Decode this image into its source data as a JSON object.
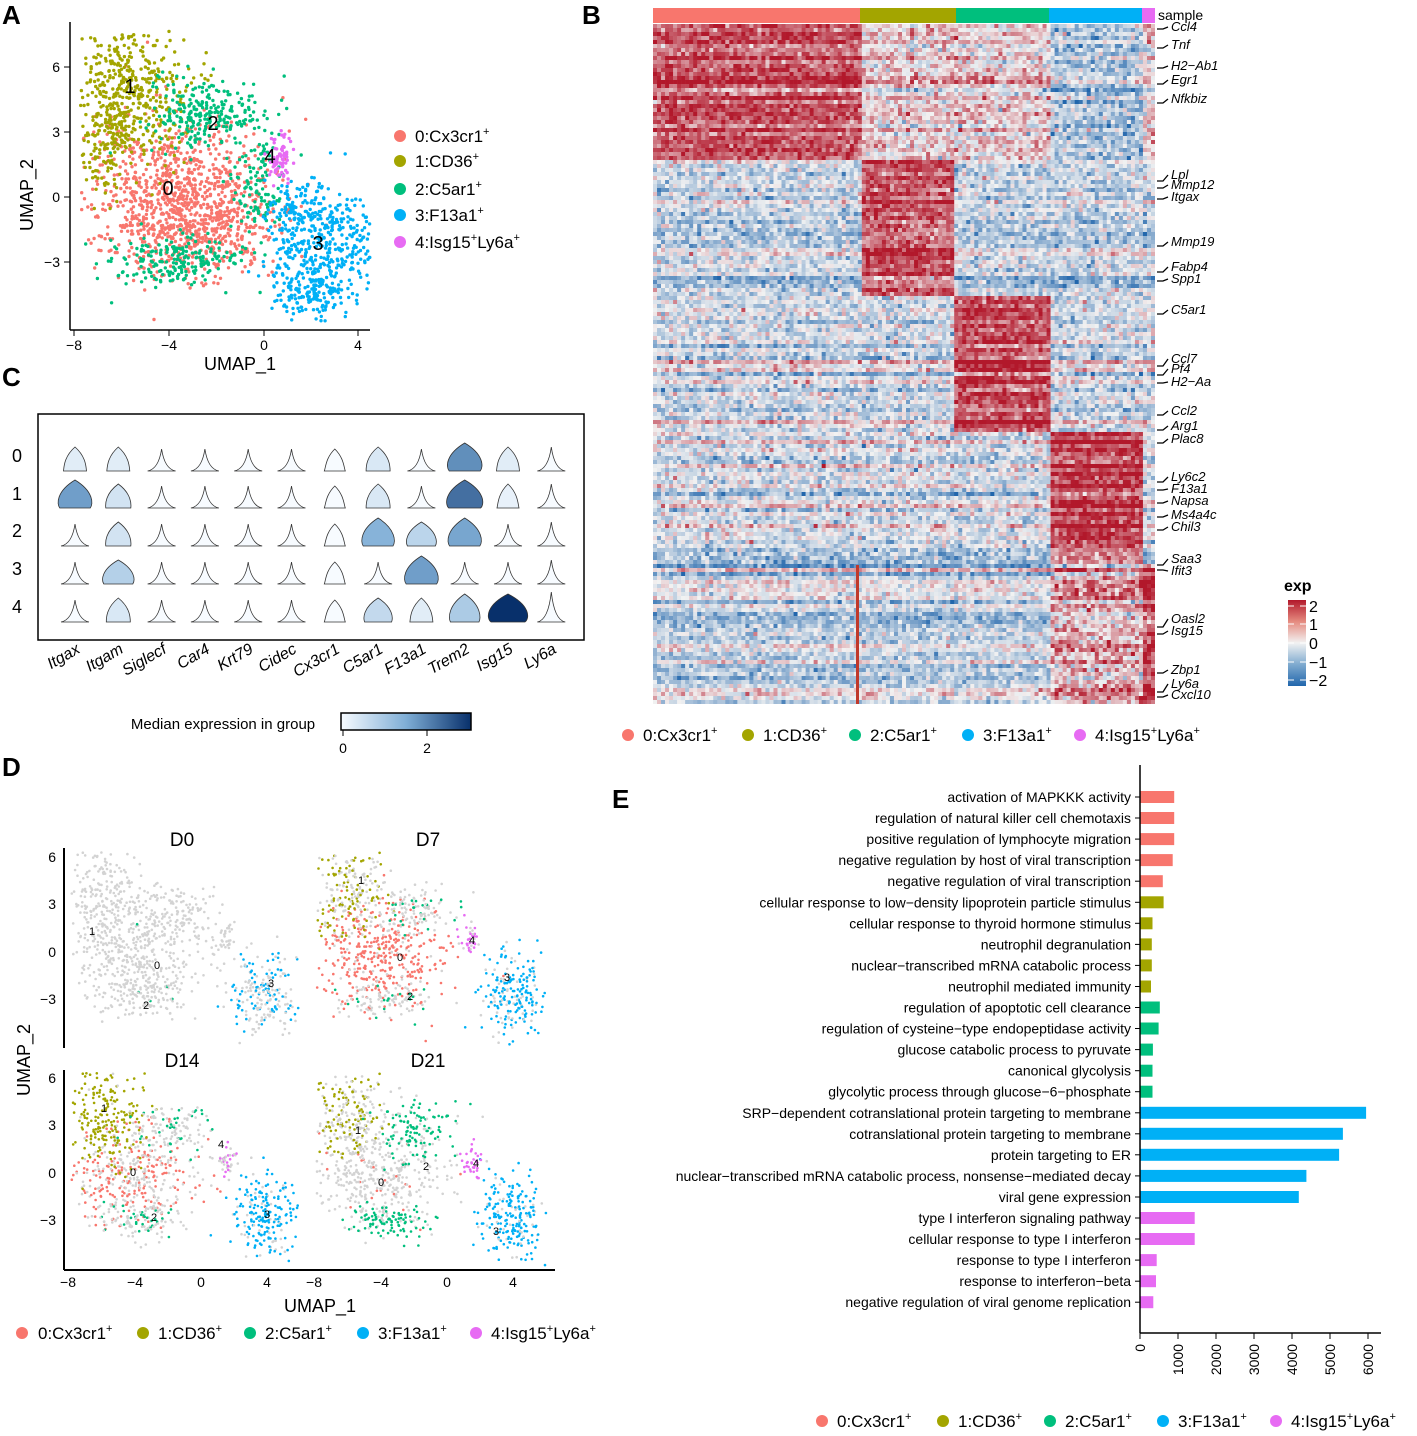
{
  "clusters": [
    {
      "id": "0",
      "name": "Cx3cr1",
      "sup": "+",
      "color": "#F8766D"
    },
    {
      "id": "1",
      "name": "CD36",
      "sup": "+",
      "color": "#A3A500"
    },
    {
      "id": "2",
      "name": "C5ar1",
      "sup": "+",
      "color": "#00BF7D"
    },
    {
      "id": "3",
      "name": "F13a1",
      "sup": "+",
      "color": "#00B0F6"
    },
    {
      "id": "4",
      "name": "Isg15",
      "sup": "+",
      "name2": "Ly6a",
      "sup2": "+",
      "color": "#E76BF3"
    }
  ],
  "panelA": {
    "label": "A",
    "xlabel": "UMAP_1",
    "ylabel": "UMAP_2",
    "xticks": [
      "−8",
      "−4",
      "0",
      "4"
    ],
    "yticks": [
      "6",
      "3",
      "0",
      "−3"
    ],
    "cluster_labels": [
      "0",
      "1",
      "2",
      "3",
      "4"
    ],
    "legend": [
      "0:Cx3cr1",
      "1:CD36",
      "2:C5ar1",
      "3:F13a1",
      "4:Isg15"
    ]
  },
  "panelB": {
    "label": "B",
    "sample_label": "sample",
    "genes": [
      "Ccl4",
      "Tnf",
      "H2−Ab1",
      "Egr1",
      "Nfkbiz",
      "Lpl",
      "Mmp12",
      "Itgax",
      "Mmp19",
      "Fabp4",
      "Spp1",
      "C5ar1",
      "Ccl7",
      "Pf4",
      "H2−Aa",
      "Ccl2",
      "Arg1",
      "Plac8",
      "Ly6c2",
      "F13a1",
      "Napsa",
      "Ms4a4c",
      "Chil3",
      "Saa3",
      "Ifit3",
      "Oasl2",
      "Isg15",
      "Zbp1",
      "Ly6a",
      "Cxcl10"
    ],
    "scale_title": "exp",
    "scale_ticks": [
      "2",
      "1",
      "0",
      "−1",
      "−2"
    ]
  },
  "panelC": {
    "label": "C",
    "rows": [
      "0",
      "1",
      "2",
      "3",
      "4"
    ],
    "genes": [
      "Itgax",
      "Itgam",
      "Siglecf",
      "Car4",
      "Krt79",
      "Cidec",
      "Cx3cr1",
      "C5ar1",
      "F13a1",
      "Trem2",
      "Isg15",
      "Ly6a"
    ],
    "median": [
      [
        0.3,
        0.3,
        0,
        0,
        0,
        0,
        0,
        0.4,
        0,
        2.0,
        0.3,
        0
      ],
      [
        1.8,
        0.5,
        0,
        0,
        0,
        0,
        0,
        0.4,
        0,
        2.4,
        0.2,
        0
      ],
      [
        0,
        0.5,
        0,
        0,
        0,
        0,
        0,
        1.5,
        0.8,
        1.7,
        0,
        0
      ],
      [
        0,
        0.9,
        0,
        0,
        0,
        0,
        0,
        0,
        1.8,
        0,
        0,
        0
      ],
      [
        0,
        0.4,
        0,
        0,
        0,
        0,
        0,
        0.7,
        0.3,
        1.0,
        3.2,
        0
      ]
    ],
    "colorbar_title": "Median expression in group",
    "colorbar_ticks": [
      "0",
      "2"
    ]
  },
  "panelD": {
    "label": "D",
    "facets": [
      "D0",
      "D7",
      "D14",
      "D21"
    ],
    "xlabel": "UMAP_1",
    "ylabel": "UMAP_2",
    "xticks": [
      "−8",
      "−4",
      "0",
      "4"
    ],
    "yticks": [
      "6",
      "3",
      "0",
      "−3"
    ]
  },
  "chart_data": {
    "type": "bar",
    "title": "E",
    "orientation": "horizontal",
    "xlim": [
      0,
      6000
    ],
    "xticks": [
      "0",
      "1000",
      "2000",
      "3000",
      "4000",
      "5000",
      "6000"
    ],
    "categories": [
      "activation of MAPKKK activity",
      "regulation of natural killer cell chemotaxis",
      "positive regulation of lymphocyte migration",
      "negative regulation by host of viral transcription",
      "negative regulation of viral transcription",
      "cellular response to low−density lipoprotein particle stimulus",
      "cellular response to thyroid hormone stimulus",
      "neutrophil degranulation",
      "nuclear−transcribed mRNA catabolic process",
      "neutrophil mediated immunity",
      "regulation of apoptotic cell clearance",
      "regulation of cysteine−type endopeptidase activity",
      "glucose catabolic process to pyruvate",
      "canonical glycolysis",
      "glycolytic process through glucose−6−phosphate",
      "SRP−dependent cotranslational protein targeting to membrane",
      "cotranslational protein targeting to membrane",
      "protein targeting to ER",
      "nuclear−transcribed mRNA catabolic process, nonsense−mediated decay",
      "viral gene expression",
      "type I interferon signaling pathway",
      "cellular response to type I interferon",
      "response to type I interferon",
      "response to interferon−beta",
      "negative regulation of viral genome replication"
    ],
    "values": [
      900,
      900,
      900,
      860,
      600,
      620,
      330,
      310,
      310,
      290,
      520,
      490,
      340,
      330,
      330,
      5950,
      5340,
      5240,
      4380,
      4180,
      1440,
      1440,
      440,
      420,
      350
    ],
    "cluster": [
      0,
      0,
      0,
      0,
      0,
      1,
      1,
      1,
      1,
      1,
      2,
      2,
      2,
      2,
      2,
      3,
      3,
      3,
      3,
      3,
      4,
      4,
      4,
      4,
      4
    ]
  }
}
